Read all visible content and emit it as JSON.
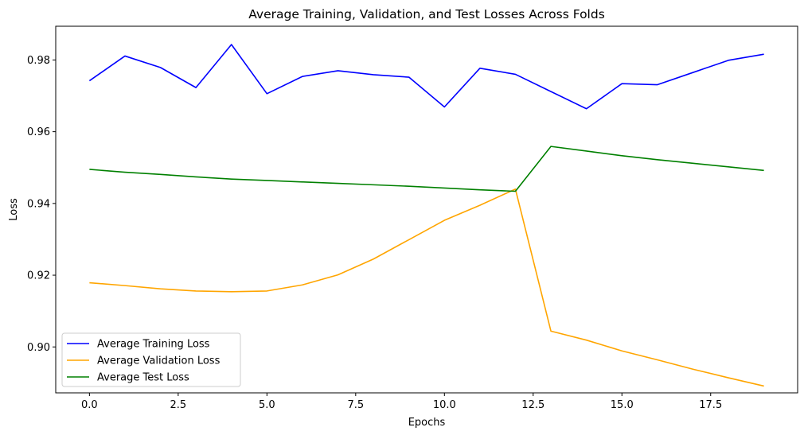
{
  "chart_data": {
    "type": "line",
    "title": "Average Training, Validation, and Test Losses Across Folds",
    "xlabel": "Epochs",
    "ylabel": "Loss",
    "xlim": [
      -0.95,
      19.95
    ],
    "ylim": [
      0.8872,
      0.9894
    ],
    "x": [
      0,
      1,
      2,
      3,
      4,
      5,
      6,
      7,
      8,
      9,
      10,
      11,
      12,
      13,
      14,
      15,
      16,
      17,
      18,
      19
    ],
    "xticks": [
      0.0,
      2.5,
      5.0,
      7.5,
      10.0,
      12.5,
      15.0,
      17.5
    ],
    "xtick_labels": [
      "0.0",
      "2.5",
      "5.0",
      "7.5",
      "10.0",
      "12.5",
      "15.0",
      "17.5"
    ],
    "yticks": [
      0.9,
      0.92,
      0.94,
      0.96,
      0.98
    ],
    "ytick_labels": [
      "0.90",
      "0.92",
      "0.94",
      "0.96",
      "0.98"
    ],
    "grid": false,
    "legend_position": "lower-left",
    "series": [
      {
        "name": "Average Training Loss",
        "color": "#0000ff",
        "values": [
          0.9742,
          0.9811,
          0.9779,
          0.9723,
          0.9843,
          0.9706,
          0.9754,
          0.977,
          0.9759,
          0.9752,
          0.9669,
          0.9777,
          0.976,
          0.9712,
          0.9664,
          0.9734,
          0.9731,
          0.9765,
          0.9799,
          0.9816
        ]
      },
      {
        "name": "Average Validation Loss",
        "color": "#ffa500",
        "values": [
          0.9179,
          0.9171,
          0.9162,
          0.9156,
          0.9154,
          0.9156,
          0.9173,
          0.9201,
          0.9245,
          0.9299,
          0.9353,
          0.9395,
          0.944,
          0.9044,
          0.9019,
          0.8989,
          0.8964,
          0.8938,
          0.8914,
          0.8891
        ]
      },
      {
        "name": "Average Test Loss",
        "color": "#008000",
        "values": [
          0.9495,
          0.9487,
          0.9481,
          0.9474,
          0.9468,
          0.9464,
          0.946,
          0.9456,
          0.9452,
          0.9448,
          0.9443,
          0.9438,
          0.9434,
          0.9559,
          0.9546,
          0.9533,
          0.9522,
          0.9512,
          0.9502,
          0.9492
        ]
      }
    ]
  }
}
